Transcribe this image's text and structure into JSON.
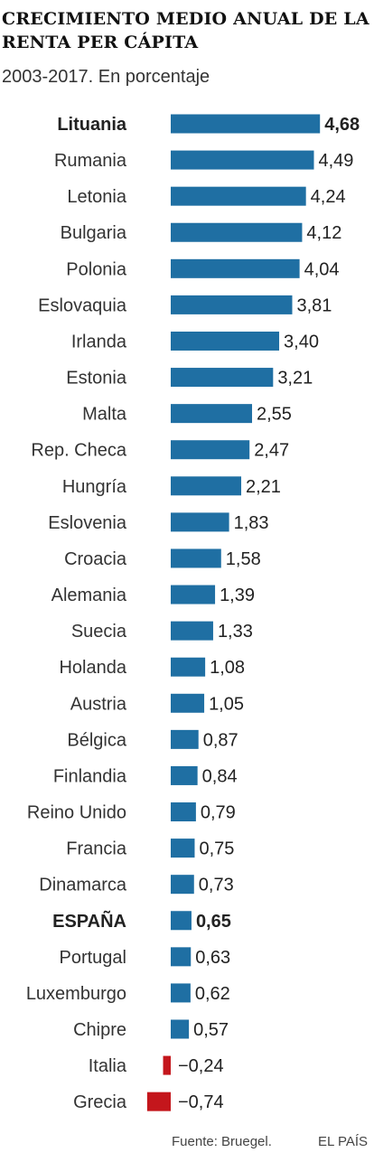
{
  "chart_data": {
    "type": "bar",
    "orientation": "horizontal",
    "title": "CRECIMIENTO MEDIO ANUAL DE LA RENTA PER CÁPITA",
    "subtitle": "2003-2017. En porcentaje",
    "categories": [
      "Lituania",
      "Rumania",
      "Letonia",
      "Bulgaria",
      "Polonia",
      "Eslovaquia",
      "Irlanda",
      "Estonia",
      "Malta",
      "Rep. Checa",
      "Hungría",
      "Eslovenia",
      "Croacia",
      "Alemania",
      "Suecia",
      "Holanda",
      "Austria",
      "Bélgica",
      "Finlandia",
      "Reino Unido",
      "Francia",
      "Dinamarca",
      "ESPAÑA",
      "Portugal",
      "Luxemburgo",
      "Chipre",
      "Italia",
      "Grecia"
    ],
    "values": [
      4.68,
      4.49,
      4.24,
      4.12,
      4.04,
      3.81,
      3.4,
      3.21,
      2.55,
      2.47,
      2.21,
      1.83,
      1.58,
      1.39,
      1.33,
      1.08,
      1.05,
      0.87,
      0.84,
      0.79,
      0.75,
      0.73,
      0.65,
      0.63,
      0.62,
      0.57,
      -0.24,
      -0.74
    ],
    "value_labels": [
      "4,68",
      "4,49",
      "4,24",
      "4,12",
      "4,04",
      "3,81",
      "3,40",
      "3,21",
      "2,55",
      "2,47",
      "2,21",
      "1,83",
      "1,58",
      "1,39",
      "1,33",
      "1,08",
      "1,05",
      "0,87",
      "0,84",
      "0,79",
      "0,75",
      "0,73",
      "0,65",
      "0,63",
      "0,62",
      "0,57",
      "−0,24",
      "−0,74"
    ],
    "highlight": [
      "Lituania",
      "ESPAÑA"
    ],
    "colors": {
      "positive": "#1f6fa3",
      "negative": "#c4161c"
    },
    "xlim": [
      -0.74,
      4.68
    ],
    "grid": false,
    "legend": "none"
  },
  "footer": {
    "source": "Fuente: Bruegel.",
    "brand": "EL PAÍS"
  }
}
